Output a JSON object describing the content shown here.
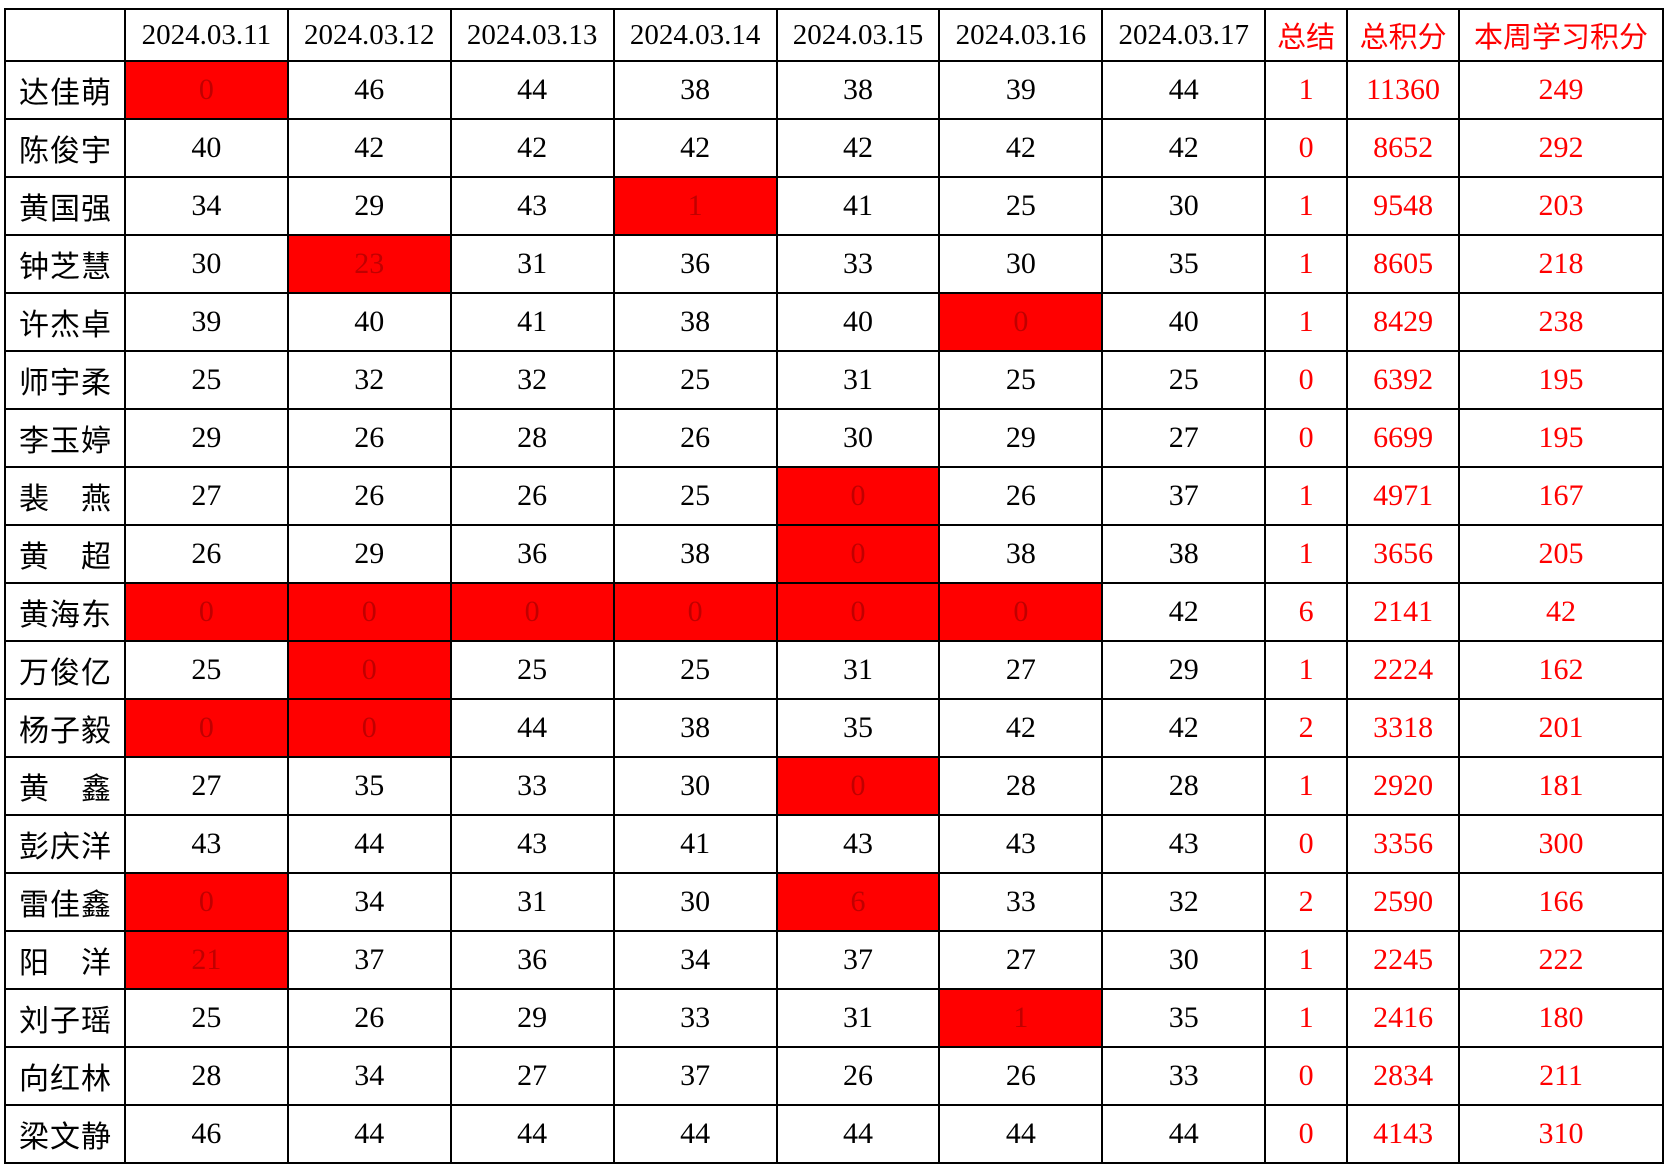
{
  "table": {
    "columns": {
      "dates": [
        "2024.03.11",
        "2024.03.12",
        "2024.03.13",
        "2024.03.14",
        "2024.03.15",
        "2024.03.16",
        "2024.03.17"
      ],
      "summary": "总结",
      "total": "总积分",
      "week": "本周学习积分"
    },
    "colors": {
      "highlight_bg": "#ff0000",
      "highlight_digit": "#c00000",
      "red_text": "#ff0000",
      "grid": "#000000"
    },
    "rows": [
      {
        "name": "达佳萌",
        "days": [
          0,
          46,
          44,
          38,
          38,
          39,
          44
        ],
        "red_days": [
          0
        ],
        "summary": 1,
        "total": 11360,
        "week": 249
      },
      {
        "name": "陈俊宇",
        "days": [
          40,
          42,
          42,
          42,
          42,
          42,
          42
        ],
        "red_days": [],
        "summary": 0,
        "total": 8652,
        "week": 292
      },
      {
        "name": "黄国强",
        "days": [
          34,
          29,
          43,
          1,
          41,
          25,
          30
        ],
        "red_days": [
          3
        ],
        "summary": 1,
        "total": 9548,
        "week": 203
      },
      {
        "name": "钟芝慧",
        "days": [
          30,
          23,
          31,
          36,
          33,
          30,
          35
        ],
        "red_days": [
          1
        ],
        "summary": 1,
        "total": 8605,
        "week": 218
      },
      {
        "name": "许杰卓",
        "days": [
          39,
          40,
          41,
          38,
          40,
          0,
          40
        ],
        "red_days": [
          5
        ],
        "summary": 1,
        "total": 8429,
        "week": 238
      },
      {
        "name": "师宇柔",
        "days": [
          25,
          32,
          32,
          25,
          31,
          25,
          25
        ],
        "red_days": [],
        "summary": 0,
        "total": 6392,
        "week": 195
      },
      {
        "name": "李玉婷",
        "days": [
          29,
          26,
          28,
          26,
          30,
          29,
          27
        ],
        "red_days": [],
        "summary": 0,
        "total": 6699,
        "week": 195
      },
      {
        "name": "裴燕",
        "days": [
          27,
          26,
          26,
          25,
          0,
          26,
          37
        ],
        "red_days": [
          4
        ],
        "summary": 1,
        "total": 4971,
        "week": 167
      },
      {
        "name": "黄超",
        "days": [
          26,
          29,
          36,
          38,
          0,
          38,
          38
        ],
        "red_days": [
          4
        ],
        "summary": 1,
        "total": 3656,
        "week": 205
      },
      {
        "name": "黄海东",
        "days": [
          0,
          0,
          0,
          0,
          0,
          0,
          42
        ],
        "red_days": [
          0,
          1,
          2,
          3,
          4,
          5
        ],
        "summary": 6,
        "total": 2141,
        "week": 42
      },
      {
        "name": "万俊亿",
        "days": [
          25,
          0,
          25,
          25,
          31,
          27,
          29
        ],
        "red_days": [
          1
        ],
        "summary": 1,
        "total": 2224,
        "week": 162
      },
      {
        "name": "杨子毅",
        "days": [
          0,
          0,
          44,
          38,
          35,
          42,
          42
        ],
        "red_days": [
          0,
          1
        ],
        "summary": 2,
        "total": 3318,
        "week": 201
      },
      {
        "name": "黄鑫",
        "days": [
          27,
          35,
          33,
          30,
          0,
          28,
          28
        ],
        "red_days": [
          4
        ],
        "summary": 1,
        "total": 2920,
        "week": 181
      },
      {
        "name": "彭庆洋",
        "days": [
          43,
          44,
          43,
          41,
          43,
          43,
          43
        ],
        "red_days": [],
        "summary": 0,
        "total": 3356,
        "week": 300
      },
      {
        "name": "雷佳鑫",
        "days": [
          0,
          34,
          31,
          30,
          6,
          33,
          32
        ],
        "red_days": [
          0,
          4
        ],
        "summary": 2,
        "total": 2590,
        "week": 166
      },
      {
        "name": "阳洋",
        "days": [
          21,
          37,
          36,
          34,
          37,
          27,
          30
        ],
        "red_days": [
          0
        ],
        "summary": 1,
        "total": 2245,
        "week": 222
      },
      {
        "name": "刘子瑶",
        "days": [
          25,
          26,
          29,
          33,
          31,
          1,
          35
        ],
        "red_days": [
          5
        ],
        "summary": 1,
        "total": 2416,
        "week": 180
      },
      {
        "name": "向红林",
        "days": [
          28,
          34,
          27,
          37,
          26,
          26,
          33
        ],
        "red_days": [],
        "summary": 0,
        "total": 2834,
        "week": 211
      },
      {
        "name": "梁文静",
        "days": [
          46,
          44,
          44,
          44,
          44,
          44,
          44
        ],
        "red_days": [],
        "summary": 0,
        "total": 4143,
        "week": 310
      }
    ]
  }
}
